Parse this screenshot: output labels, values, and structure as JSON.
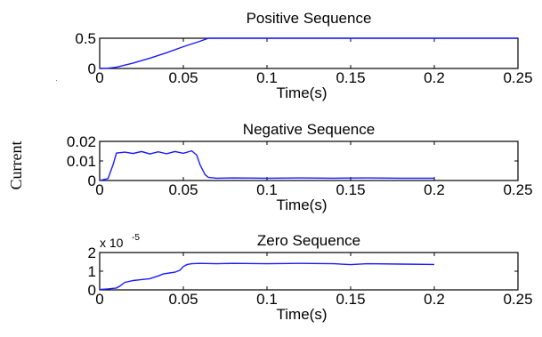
{
  "figure": {
    "ylabel": "Current"
  },
  "colors": {
    "series": "#1a1aff",
    "axis": "#000000"
  },
  "chart_data": [
    {
      "type": "line",
      "title": "Positive Sequence",
      "xlabel": "Time(s)",
      "ylabel": "",
      "xlim": [
        0,
        0.25
      ],
      "ylim": [
        0,
        0.5
      ],
      "xticks": [
        "0",
        "0.05",
        "0.1",
        "0.15",
        "0.2",
        "0.25"
      ],
      "yticks": [
        "0",
        "0.5"
      ],
      "exponent_label": "",
      "series": [
        {
          "x": [
            0,
            0.005,
            0.01,
            0.02,
            0.03,
            0.04,
            0.05,
            0.06,
            0.065,
            0.08,
            0.1,
            0.12,
            0.14,
            0.16,
            0.18,
            0.2,
            0.22,
            0.25
          ],
          "y": [
            0,
            0.004,
            0.02,
            0.09,
            0.17,
            0.26,
            0.36,
            0.45,
            0.5,
            0.5,
            0.5,
            0.5,
            0.5,
            0.5,
            0.5,
            0.5,
            0.5,
            0.5
          ]
        }
      ]
    },
    {
      "type": "line",
      "title": "Negative Sequence",
      "xlabel": "Time(s)",
      "ylabel": "",
      "xlim": [
        0,
        0.25
      ],
      "ylim": [
        0,
        0.02
      ],
      "xticks": [
        "0",
        "0.05",
        "0.1",
        "0.15",
        "0.2",
        "0.25"
      ],
      "yticks": [
        "0",
        "0.01",
        "0.02"
      ],
      "exponent_label": "",
      "series": [
        {
          "x": [
            0,
            0.005,
            0.008,
            0.01,
            0.015,
            0.02,
            0.025,
            0.03,
            0.035,
            0.04,
            0.045,
            0.05,
            0.055,
            0.058,
            0.06,
            0.063,
            0.065,
            0.07,
            0.08,
            0.1,
            0.12,
            0.14,
            0.16,
            0.18,
            0.2
          ],
          "y": [
            0,
            0.001,
            0.008,
            0.014,
            0.0145,
            0.0138,
            0.0148,
            0.0136,
            0.0147,
            0.0137,
            0.0148,
            0.0139,
            0.0152,
            0.013,
            0.008,
            0.003,
            0.0016,
            0.0012,
            0.0013,
            0.0012,
            0.0013,
            0.0012,
            0.0013,
            0.0012,
            0.0012
          ]
        }
      ]
    },
    {
      "type": "line",
      "title": "Zero Sequence",
      "xlabel": "Time(s)",
      "ylabel": "",
      "xlim": [
        0,
        0.25
      ],
      "ylim": [
        0,
        2
      ],
      "xticks": [
        "0",
        "0.05",
        "0.1",
        "0.15",
        "0.2",
        "0.25"
      ],
      "yticks": [
        "0",
        "1",
        "2"
      ],
      "exponent_label": {
        "base": "x 10",
        "power": "-5"
      },
      "series": [
        {
          "x": [
            0,
            0.005,
            0.01,
            0.012,
            0.015,
            0.02,
            0.025,
            0.03,
            0.035,
            0.038,
            0.04,
            0.045,
            0.048,
            0.05,
            0.052,
            0.055,
            0.06,
            0.07,
            0.08,
            0.1,
            0.12,
            0.14,
            0.15,
            0.16,
            0.18,
            0.2
          ],
          "y": [
            0.02,
            0.05,
            0.1,
            0.2,
            0.4,
            0.5,
            0.55,
            0.6,
            0.75,
            0.85,
            0.88,
            0.95,
            1.05,
            1.25,
            1.35,
            1.4,
            1.42,
            1.4,
            1.42,
            1.4,
            1.42,
            1.4,
            1.35,
            1.4,
            1.38,
            1.36
          ]
        }
      ]
    }
  ]
}
